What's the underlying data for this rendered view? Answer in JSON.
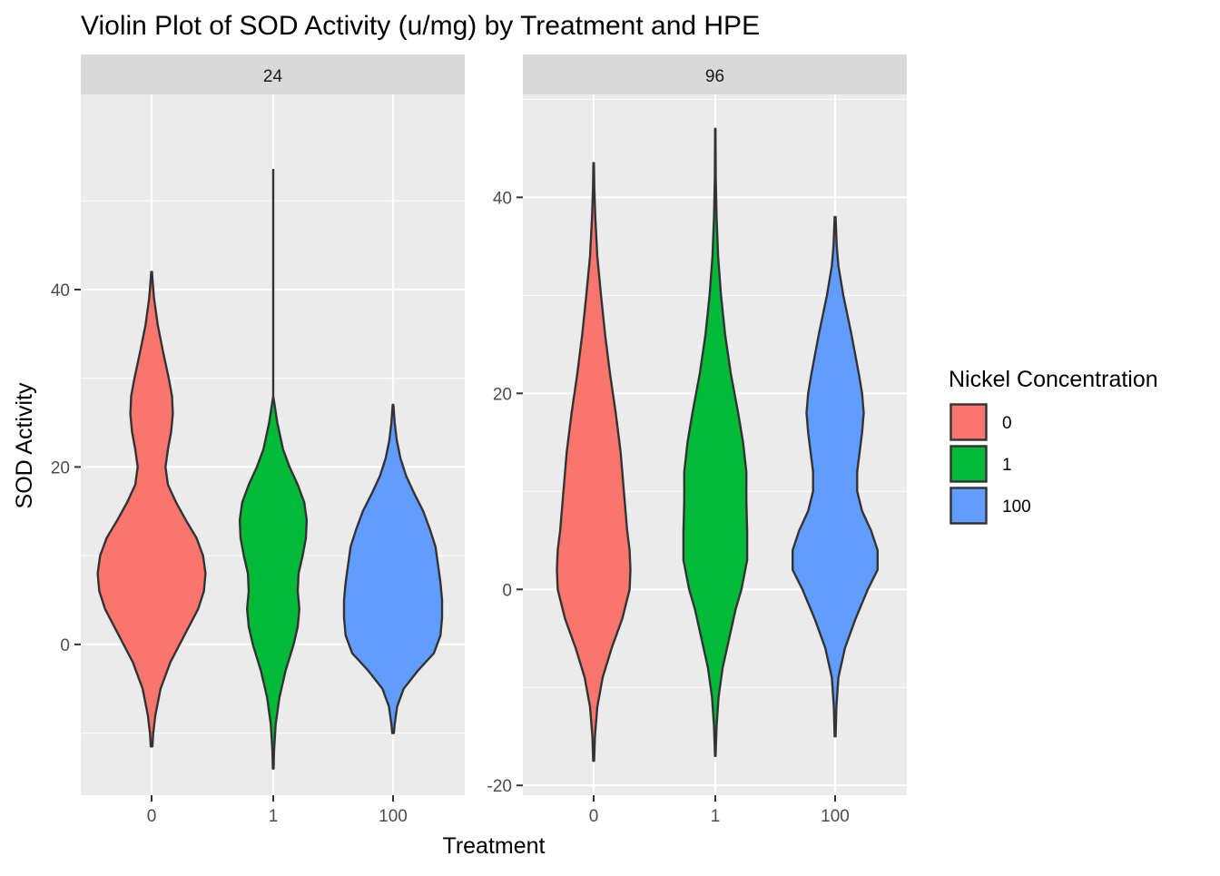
{
  "chart_data": {
    "type": "violin",
    "title": "Violin Plot of SOD Activity (u/mg) by Treatment and HPE",
    "xlabel": "Treatment",
    "ylabel": "SOD Activity",
    "categories": [
      "0",
      "1",
      "100"
    ],
    "legend": {
      "title": "Nickel Concentration",
      "placement": "right",
      "entries": [
        {
          "label": "0",
          "color": "#F8766D"
        },
        {
          "label": "1",
          "color": "#00BA38"
        },
        {
          "label": "100",
          "color": "#619CFF"
        }
      ]
    },
    "outline_color": "#333333",
    "panels": [
      {
        "strip": "24",
        "ylim": [
          -17,
          62
        ],
        "yticks": [
          0,
          20,
          40
        ],
        "ytick_labels": [
          "0",
          "20",
          "40"
        ],
        "violins": [
          {
            "category": "0",
            "fill": "#F8766D",
            "profile": [
              [
                -11.5,
                0.01
              ],
              [
                -10,
                0.02
              ],
              [
                -8,
                0.045
              ],
              [
                -5,
                0.11
              ],
              [
                -2,
                0.23
              ],
              [
                1,
                0.4
              ],
              [
                4,
                0.57
              ],
              [
                6,
                0.64
              ],
              [
                8,
                0.66
              ],
              [
                10,
                0.63
              ],
              [
                12,
                0.55
              ],
              [
                14,
                0.42
              ],
              [
                16,
                0.3
              ],
              [
                18,
                0.2
              ],
              [
                20,
                0.17
              ],
              [
                22,
                0.2
              ],
              [
                24,
                0.24
              ],
              [
                26,
                0.26
              ],
              [
                28,
                0.25
              ],
              [
                30,
                0.21
              ],
              [
                33,
                0.14
              ],
              [
                36,
                0.075
              ],
              [
                39,
                0.03
              ],
              [
                41,
                0.012
              ],
              [
                42,
                0.005
              ]
            ]
          },
          {
            "category": "1",
            "fill": "#00BA38",
            "profile": [
              [
                -14,
                0.005
              ],
              [
                -12,
                0.01
              ],
              [
                -9,
                0.03
              ],
              [
                -6,
                0.075
              ],
              [
                -3,
                0.15
              ],
              [
                0,
                0.25
              ],
              [
                2,
                0.3
              ],
              [
                4,
                0.32
              ],
              [
                6,
                0.3
              ],
              [
                8,
                0.31
              ],
              [
                10,
                0.36
              ],
              [
                12,
                0.4
              ],
              [
                14,
                0.41
              ],
              [
                16,
                0.38
              ],
              [
                18,
                0.3
              ],
              [
                20,
                0.2
              ],
              [
                22,
                0.12
              ],
              [
                25,
                0.05
              ],
              [
                28,
                0.0
              ],
              [
                30,
                0.0
              ],
              [
                33,
                0.0
              ],
              [
                35,
                0.0
              ],
              [
                37,
                0.0
              ],
              [
                38,
                0.0
              ],
              [
                40,
                0.0
              ],
              [
                43,
                0.0
              ],
              [
                46,
                0.0
              ],
              [
                49,
                0.0
              ],
              [
                52,
                0.0
              ],
              [
                53.5,
                0.0
              ]
            ]
          },
          {
            "category": "100",
            "fill": "#619CFF",
            "profile": [
              [
                -10,
                0.01
              ],
              [
                -9,
                0.02
              ],
              [
                -7,
                0.05
              ],
              [
                -5,
                0.13
              ],
              [
                -3,
                0.3
              ],
              [
                -1,
                0.5
              ],
              [
                1,
                0.58
              ],
              [
                3,
                0.6
              ],
              [
                5,
                0.6
              ],
              [
                7,
                0.58
              ],
              [
                9,
                0.55
              ],
              [
                11,
                0.52
              ],
              [
                13,
                0.45
              ],
              [
                15,
                0.37
              ],
              [
                17,
                0.26
              ],
              [
                19,
                0.16
              ],
              [
                21,
                0.09
              ],
              [
                23,
                0.045
              ],
              [
                25,
                0.02
              ],
              [
                27,
                0.005
              ]
            ]
          }
        ]
      },
      {
        "strip": "96",
        "ylim": [
          -21,
          50.5
        ],
        "yticks": [
          -20,
          0,
          20,
          40
        ],
        "ytick_labels": [
          "-20",
          "0",
          "20",
          "40"
        ],
        "violins": [
          {
            "category": "0",
            "fill": "#F8766D",
            "profile": [
              [
                -17.5,
                0.005
              ],
              [
                -15,
                0.015
              ],
              [
                -12,
                0.045
              ],
              [
                -9,
                0.11
              ],
              [
                -6,
                0.22
              ],
              [
                -3,
                0.35
              ],
              [
                0,
                0.44
              ],
              [
                2,
                0.45
              ],
              [
                4,
                0.44
              ],
              [
                6,
                0.41
              ],
              [
                10,
                0.37
              ],
              [
                14,
                0.33
              ],
              [
                18,
                0.27
              ],
              [
                22,
                0.2
              ],
              [
                26,
                0.14
              ],
              [
                30,
                0.09
              ],
              [
                34,
                0.045
              ],
              [
                38,
                0.02
              ],
              [
                41,
                0.008
              ],
              [
                43.5,
                0.003
              ]
            ]
          },
          {
            "category": "1",
            "fill": "#00BA38",
            "profile": [
              [
                -17,
                0.003
              ],
              [
                -14,
                0.015
              ],
              [
                -11,
                0.04
              ],
              [
                -8,
                0.09
              ],
              [
                -5,
                0.17
              ],
              [
                -2,
                0.25
              ],
              [
                0,
                0.32
              ],
              [
                3,
                0.39
              ],
              [
                6,
                0.39
              ],
              [
                9,
                0.38
              ],
              [
                12,
                0.38
              ],
              [
                15,
                0.34
              ],
              [
                18,
                0.28
              ],
              [
                22,
                0.19
              ],
              [
                26,
                0.12
              ],
              [
                30,
                0.07
              ],
              [
                34,
                0.035
              ],
              [
                38,
                0.015
              ],
              [
                42,
                0.006
              ],
              [
                47,
                0.002
              ]
            ]
          },
          {
            "category": "100",
            "fill": "#619CFF",
            "profile": [
              [
                -15,
                0.005
              ],
              [
                -12,
                0.015
              ],
              [
                -9,
                0.04
              ],
              [
                -6,
                0.12
              ],
              [
                -3,
                0.25
              ],
              [
                0,
                0.4
              ],
              [
                2,
                0.52
              ],
              [
                4,
                0.52
              ],
              [
                6,
                0.44
              ],
              [
                8,
                0.33
              ],
              [
                10,
                0.27
              ],
              [
                12,
                0.27
              ],
              [
                14,
                0.3
              ],
              [
                16,
                0.33
              ],
              [
                18,
                0.35
              ],
              [
                20,
                0.33
              ],
              [
                22,
                0.29
              ],
              [
                26,
                0.2
              ],
              [
                30,
                0.1
              ],
              [
                33,
                0.04
              ],
              [
                35,
                0.02
              ],
              [
                38,
                0.005
              ]
            ]
          }
        ]
      }
    ]
  }
}
